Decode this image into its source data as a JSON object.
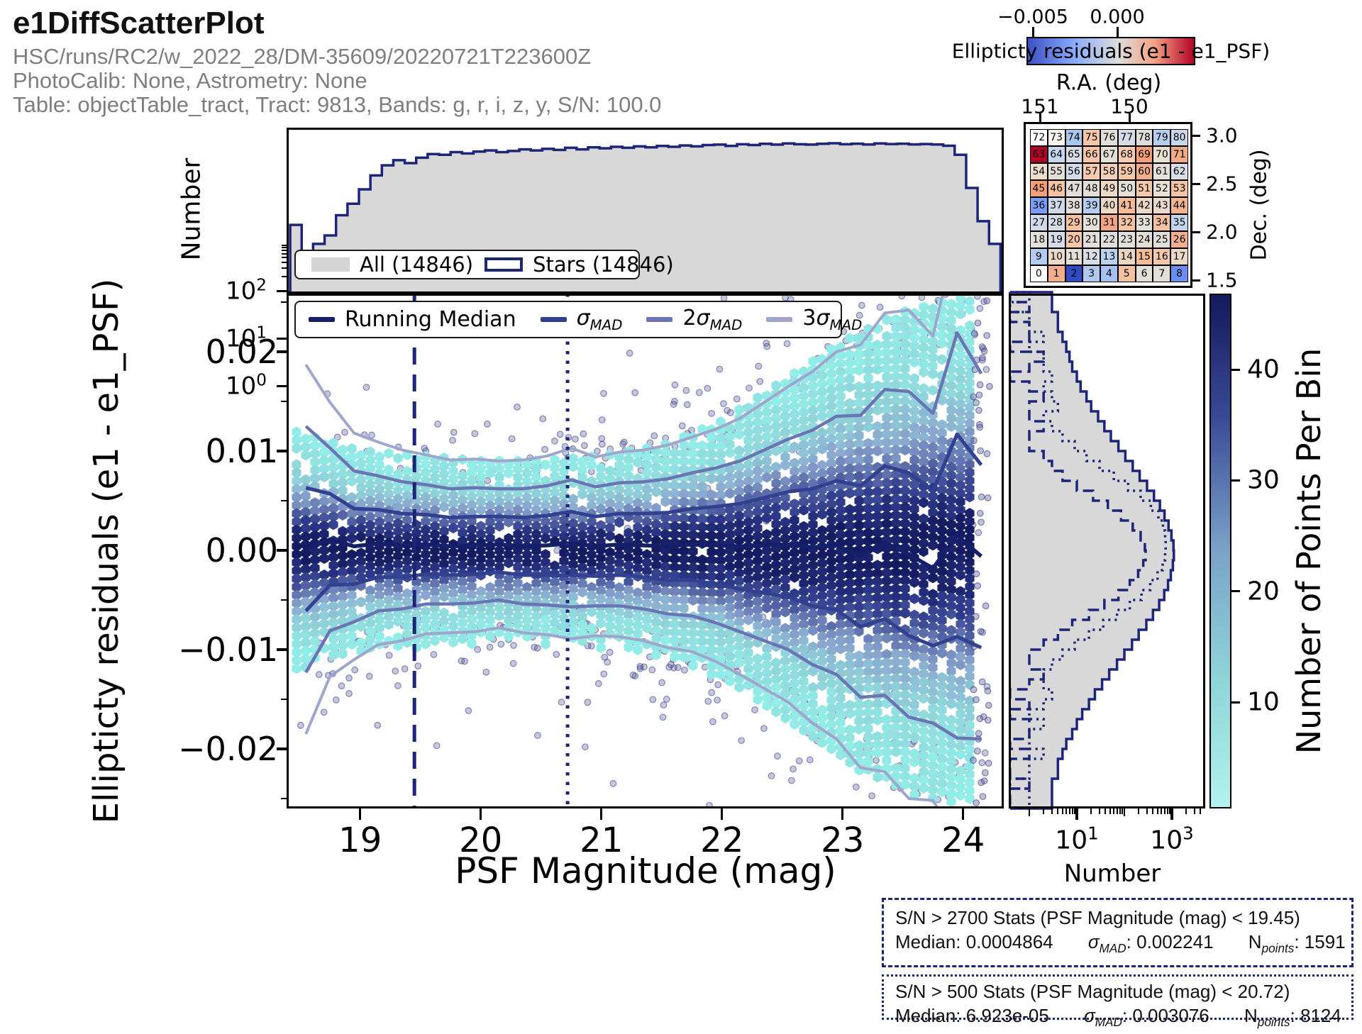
{
  "header": {
    "title": "e1DiffScatterPlot",
    "line1": "HSC/runs/RC2/w_2022_28/DM-35609/20220721T223600Z",
    "line2": "PhotoCalib: None, Astrometry: None",
    "line3": "Table: objectTable_tract, Tract: 9813, Bands: g, r, i, z, y, S/N: 100.0"
  },
  "chart_data": [
    {
      "id": "top_histogram",
      "type": "bar",
      "ylabel": "Number",
      "yscale": "log",
      "ytick_parts": [
        {
          "b": "10",
          "e": "2"
        },
        {
          "b": "10",
          "e": "1"
        },
        {
          "b": "10",
          "e": "0"
        }
      ],
      "ytick_exps": [
        2,
        1,
        0
      ],
      "legend": [
        "All (14846)",
        "Stars (14846)"
      ],
      "mag_start": 18.42,
      "mag_step": 0.095,
      "counts": [
        5,
        1,
        2,
        3,
        8,
        14,
        28,
        55,
        90,
        115,
        100,
        130,
        155,
        150,
        170,
        160,
        175,
        185,
        170,
        180,
        195,
        185,
        200,
        190,
        210,
        195,
        215,
        205,
        220,
        210,
        225,
        215,
        230,
        220,
        235,
        225,
        240,
        245,
        230,
        250,
        240,
        255,
        245,
        260,
        250,
        245,
        255,
        262,
        250,
        256,
        246,
        260,
        252,
        256,
        248,
        252,
        246,
        232,
        150,
        30,
        6,
        2
      ]
    },
    {
      "id": "main_scatter",
      "type": "scatter",
      "xlabel": "PSF Magnitude (mag)",
      "ylabel": "Ellipticty residuals (e1 - e1_PSF)",
      "xlim": [
        18.39,
        24.34
      ],
      "ylim": [
        -0.026,
        0.0259
      ],
      "xticks": [
        "19",
        "20",
        "21",
        "22",
        "23",
        "24"
      ],
      "xtick_vals": [
        19,
        20,
        21,
        22,
        23,
        24
      ],
      "yticks": [
        "0.02",
        "0.01",
        "0.00",
        "−0.01",
        "−0.02"
      ],
      "ytick_vals": [
        0.02,
        0.01,
        0,
        -0.01,
        -0.02
      ],
      "legend_parts": {
        "median": "Running Median",
        "sig1": {
          "c": "",
          "s": "σ",
          "m": "MAD"
        },
        "sig2": {
          "c": "2",
          "s": "σ",
          "m": "MAD"
        },
        "sig3": {
          "c": "3",
          "s": "σ",
          "m": "MAD"
        }
      },
      "vlines": [
        {
          "mag": 19.45,
          "style": "dashed"
        },
        {
          "mag": 20.72,
          "style": "dotted"
        }
      ],
      "series": {
        "mags": [
          18.55,
          18.75,
          18.95,
          19.15,
          19.35,
          19.55,
          19.75,
          19.95,
          20.15,
          20.35,
          20.55,
          20.75,
          20.95,
          21.15,
          21.35,
          21.55,
          21.75,
          21.95,
          22.15,
          22.35,
          22.55,
          22.75,
          22.95,
          23.15,
          23.35,
          23.55,
          23.75,
          23.95,
          24.15
        ],
        "running_median_e3": [
          0.1,
          1.1,
          0.4,
          0.7,
          0.5,
          0.6,
          0.4,
          0.5,
          0.6,
          0.4,
          0.5,
          0.7,
          0.4,
          0.6,
          0.5,
          0.4,
          0.6,
          0.5,
          0.4,
          0.5,
          0.6,
          0.3,
          0.5,
          -0.6,
          0.8,
          -0.4,
          -1.8,
          1.5,
          -0.6
        ],
        "sigma_mad_e3": [
          6.2,
          4.6,
          3.8,
          3.4,
          3.2,
          3.0,
          2.9,
          2.9,
          2.8,
          2.9,
          3.0,
          3.2,
          3.0,
          3.1,
          3.2,
          3.4,
          3.6,
          3.9,
          4.3,
          4.8,
          5.3,
          5.9,
          6.5,
          7.1,
          7.7,
          8.2,
          7.8,
          10.2,
          9.2
        ]
      },
      "hex_env_e3": [
        [
          18.45,
          12
        ],
        [
          19,
          10
        ],
        [
          19.5,
          9.5
        ],
        [
          20,
          9
        ],
        [
          20.5,
          9
        ],
        [
          21,
          9.5
        ],
        [
          21.5,
          10.5
        ],
        [
          22,
          13
        ],
        [
          22.5,
          17
        ],
        [
          23,
          21
        ],
        [
          23.5,
          24
        ],
        [
          24,
          25.5
        ],
        [
          24.12,
          25.5
        ]
      ],
      "colorbar": {
        "label": "Number of Points Per Bin",
        "ticks": [
          "10",
          "20",
          "30",
          "40"
        ],
        "tick_vals": [
          10,
          20,
          30,
          40
        ]
      }
    },
    {
      "id": "right_histogram",
      "type": "bar",
      "orientation": "horizontal",
      "xlabel": "Number",
      "xscale": "log",
      "xtick_parts": [
        {
          "b": "10",
          "e": "1"
        },
        {
          "b": "10",
          "e": "3"
        }
      ],
      "xtick_exps": [
        1,
        3
      ],
      "y_top": 0.026,
      "y_step": 0.001,
      "counts_all": [
        3,
        3,
        4,
        4,
        5,
        6,
        7,
        8,
        10,
        12,
        16,
        20,
        28,
        38,
        52,
        75,
        105,
        150,
        210,
        300,
        420,
        560,
        700,
        850,
        980,
        1080,
        1100,
        1050,
        950,
        830,
        690,
        540,
        400,
        290,
        200,
        145,
        100,
        70,
        48,
        34,
        24,
        18,
        13,
        10,
        8,
        6,
        5,
        4,
        4,
        3,
        3,
        3
      ],
      "counts_snr500": [
        1,
        0,
        1,
        1,
        2,
        1,
        2,
        2,
        3,
        2,
        3,
        4,
        2,
        3,
        5,
        9,
        16,
        30,
        60,
        120,
        220,
        360,
        520,
        650,
        720,
        740,
        720,
        640,
        500,
        350,
        230,
        130,
        70,
        36,
        18,
        9,
        5,
        3,
        2,
        2,
        3,
        2,
        1,
        2,
        1,
        1,
        2,
        1,
        1,
        0,
        1,
        1
      ],
      "counts_snr2700": [
        0,
        1,
        0,
        1,
        1,
        0,
        2,
        1,
        0,
        1,
        2,
        1,
        1,
        2,
        1,
        1,
        2,
        3,
        5,
        10,
        22,
        45,
        85,
        150,
        220,
        270,
        280,
        250,
        195,
        130,
        75,
        38,
        18,
        8,
        4,
        2,
        1,
        1,
        2,
        1,
        0,
        1,
        0,
        1,
        1,
        0,
        1,
        0,
        0,
        1,
        0,
        0
      ]
    },
    {
      "id": "sky_map",
      "type": "heatmap",
      "xlabel": "R.A. (deg)",
      "ylabel": "Dec. (deg)",
      "xticks": [
        "151",
        "150"
      ],
      "yticks": [
        "3.0",
        "2.5",
        "2.0",
        "1.5"
      ],
      "colorbar": {
        "ticks": [
          "−0.005",
          "0.000"
        ],
        "label": "Ellipticty residuals (e1 - e1_PSF)"
      },
      "values": [
        72,
        73,
        74,
        75,
        76,
        77,
        78,
        79,
        80,
        63,
        64,
        65,
        66,
        67,
        68,
        69,
        70,
        71,
        54,
        55,
        56,
        57,
        58,
        59,
        60,
        61,
        62,
        45,
        46,
        47,
        48,
        49,
        50,
        51,
        52,
        53,
        36,
        37,
        38,
        39,
        40,
        41,
        42,
        43,
        44,
        27,
        28,
        29,
        30,
        31,
        32,
        33,
        34,
        35,
        18,
        19,
        20,
        21,
        22,
        23,
        24,
        25,
        26,
        9,
        10,
        11,
        12,
        13,
        14,
        15,
        16,
        17,
        0,
        1,
        2,
        3,
        4,
        5,
        6,
        7,
        8
      ],
      "colors": [
        "#ffffff",
        "#f7f4ee",
        "#a9c6ec",
        "#f6c4a6",
        "#e2dfda",
        "#d6dce6",
        "#e0ddd8",
        "#b7cdec",
        "#c9d6e9",
        "#b40426",
        "#c5d6f0",
        "#d8dde6",
        "#f6c5a7",
        "#e4e0d9",
        "#f6cdb3",
        "#f2a079",
        "#e9e0d4",
        "#f3a983",
        "#ecddcd",
        "#e3e0da",
        "#d3dbe9",
        "#f6caae",
        "#f3d0ba",
        "#f6c6a9",
        "#f3ad8c",
        "#e6e1d8",
        "#d8dde6",
        "#f29e77",
        "#f6c2a2",
        "#e1dfda",
        "#e2dfd9",
        "#edd9c6",
        "#e4e0d8",
        "#f6c8ab",
        "#e7e1d7",
        "#f6c4a5",
        "#7a9df8",
        "#cfd9e9",
        "#e1dfdb",
        "#b5cdf0",
        "#edd8c5",
        "#f5bb97",
        "#ecd9c7",
        "#ebdacb",
        "#f3b491",
        "#d2dae9",
        "#d6dce6",
        "#f6c2a1",
        "#e3dfd9",
        "#f3a685",
        "#f6c3a3",
        "#e5e0d8",
        "#f6c1a0",
        "#c2d3ed",
        "#e4e0da",
        "#d5dbe8",
        "#f6c6a9",
        "#e2dfda",
        "#e1dfdb",
        "#e1dfda",
        "#e3dfd9",
        "#e0deda",
        "#f3ae8d",
        "#b2cbf2",
        "#ebd9c8",
        "#e4dfd8",
        "#d9dde5",
        "#bad1f0",
        "#edd6c1",
        "#f5bd9a",
        "#f4c7ab",
        "#ebd8c6",
        "#ffffff",
        "#f3ad8b",
        "#2f4bc5",
        "#afc8ee",
        "#a5c2f2",
        "#f6c1a0",
        "#e3dfd9",
        "#e1ded8",
        "#6b8df0"
      ]
    }
  ],
  "stats": [
    {
      "title": "S/N > 2700 Stats (PSF Magnitude (mag) < 19.45)",
      "median": "Median: 0.0004864",
      "sig_sym": "σ",
      "sig_sub": "MAD",
      "sig_val": ": 0.002241",
      "n_sym": "N",
      "n_sub": "points",
      "n_val": ": 1591",
      "style": "dashed"
    },
    {
      "title": "S/N > 500 Stats (PSF Magnitude (mag) < 20.72)",
      "median": "Median: 6.923e-05",
      "sig_sym": "σ",
      "sig_sub": "MAD",
      "sig_val": ": 0.003076",
      "n_sym": "N",
      "n_sub": "points",
      "n_val": ": 8124",
      "style": "dotted"
    }
  ]
}
